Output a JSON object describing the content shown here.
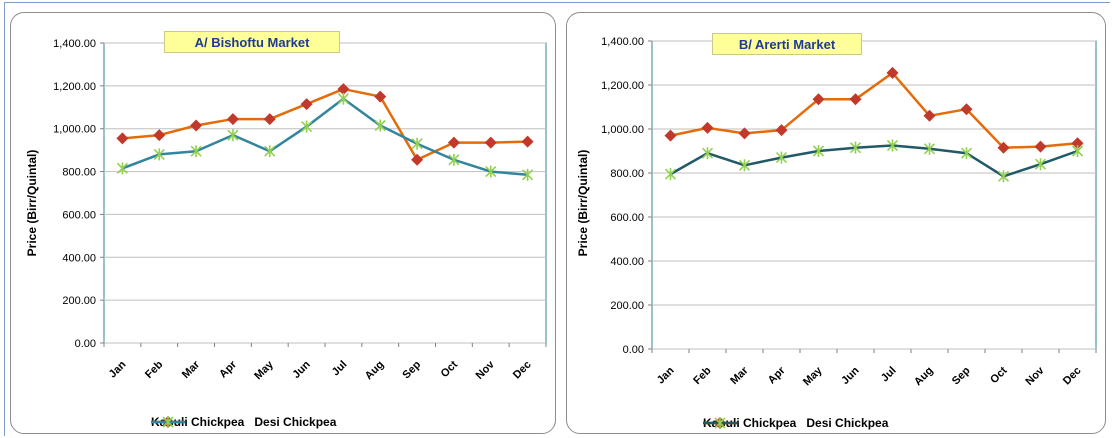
{
  "chart_data": [
    {
      "type": "line",
      "title": "A/ Bishoftu Market",
      "xlabel": "",
      "ylabel": "Price (Birr/Quintal)",
      "ylim": [
        0,
        1400
      ],
      "yticks": [
        "0.00",
        "200.00",
        "400.00",
        "600.00",
        "800.00",
        "1,000.00",
        "1,200.00",
        "1,400.00"
      ],
      "categories": [
        "Jan",
        "Feb",
        "Mar",
        "Apr",
        "May",
        "Jun",
        "Jul",
        "Aug",
        "Sep",
        "Oct",
        "Nov",
        "Dec"
      ],
      "grid": true,
      "legend": "bottom",
      "series": [
        {
          "name": "Kabuli Chickpea",
          "color": "#e36c0a",
          "marker": "diamond",
          "marker_color": "#c0392b",
          "values": [
            955,
            970,
            1015,
            1045,
            1045,
            1115,
            1185,
            1150,
            855,
            935,
            935,
            940
          ]
        },
        {
          "name": "Desi Chickpea",
          "color": "#31859c",
          "marker": "star",
          "marker_color": "#92d050",
          "values": [
            815,
            880,
            895,
            970,
            895,
            1010,
            1140,
            1015,
            930,
            855,
            800,
            785
          ]
        }
      ]
    },
    {
      "type": "line",
      "title": "B/ Arerti Market",
      "xlabel": "",
      "ylabel": "Price (Birr/Quintal)",
      "ylim": [
        0,
        1400
      ],
      "yticks": [
        "0.00",
        "200.00",
        "400.00",
        "600.00",
        "800.00",
        "1,000.00",
        "1,200.00",
        "1,400.00"
      ],
      "categories": [
        "Jan",
        "Feb",
        "Mar",
        "Apr",
        "May",
        "Jun",
        "Jul",
        "Aug",
        "Sep",
        "Oct",
        "Nov",
        "Dec"
      ],
      "grid": true,
      "legend": "bottom",
      "series": [
        {
          "name": "Kabuli Chickpea",
          "color": "#e36c0a",
          "marker": "diamond",
          "marker_color": "#c0392b",
          "values": [
            970,
            1005,
            980,
            995,
            1135,
            1135,
            1255,
            1060,
            1090,
            915,
            920,
            935
          ]
        },
        {
          "name": "Desi Chickpea",
          "color": "#215967",
          "marker": "star",
          "marker_color": "#92d050",
          "values": [
            795,
            890,
            835,
            870,
            900,
            915,
            925,
            910,
            890,
            785,
            840,
            900
          ]
        }
      ]
    }
  ]
}
